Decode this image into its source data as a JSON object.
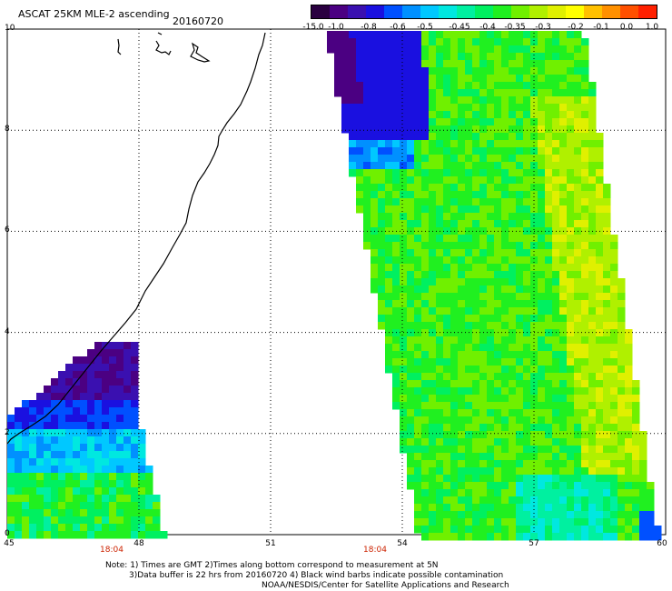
{
  "header": {
    "title": "ASCAT 25KM MLE-2 ascending",
    "date": "20160720"
  },
  "colorbar": {
    "colors": [
      "#2a0040",
      "#4b0082",
      "#3a10b0",
      "#1a10e0",
      "#0050ff",
      "#0090ff",
      "#00c8ff",
      "#00e8e0",
      "#00f0a0",
      "#00f060",
      "#20f020",
      "#70f000",
      "#b0f000",
      "#e0f000",
      "#ffff00",
      "#ffc000",
      "#ff9000",
      "#ff5000",
      "#ff2000"
    ],
    "labels": [
      "-15.0",
      "-1.0",
      "-0.8",
      "-0.6",
      "-0.5",
      "-0.45",
      "-0.4",
      "-0.35",
      "-0.3",
      "-0.2",
      "-0.1",
      "0.0",
      "1.0"
    ]
  },
  "axes": {
    "y_ticks": [
      "0",
      "2",
      "4",
      "6",
      "8",
      "10"
    ],
    "x_ticks": [
      "45",
      "48",
      "51",
      "54",
      "57",
      "60"
    ],
    "pass_times": [
      "18:04",
      "18:04"
    ]
  },
  "notes": [
    "Note: 1) Times are GMT 2)Times along bottom correspond to measurement at 5N",
    "3)Data buffer is 22 hrs from 20160720 4) Black wind barbs indicate possible contamination",
    "NOAA/NESDIS/Center for Satellite Applications and Research"
  ],
  "map_data": {
    "lon_range": [
      45,
      60
    ],
    "lat_range": [
      0,
      10
    ]
  }
}
